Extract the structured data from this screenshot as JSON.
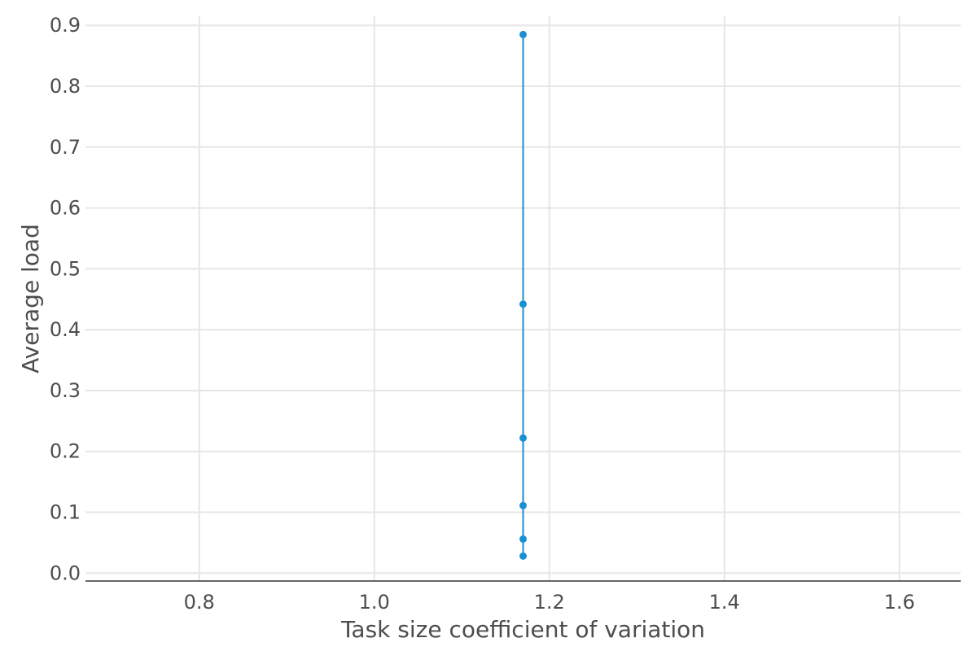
{
  "chart_data": {
    "type": "line",
    "xlabel": "Task size coefficient of variation",
    "ylabel": "Average load",
    "xlim": [
      0.67,
      1.67
    ],
    "ylim": [
      -0.013,
      0.915
    ],
    "x_ticks": [
      "0.8",
      "1.0",
      "1.2",
      "1.4",
      "1.6"
    ],
    "y_ticks": [
      "0.0",
      "0.1",
      "0.2",
      "0.3",
      "0.4",
      "0.5",
      "0.6",
      "0.7",
      "0.8",
      "0.9"
    ],
    "grid": true,
    "series": [
      {
        "color": "#1a8fd1",
        "x": [
          1.17,
          1.17,
          1.17,
          1.17,
          1.17,
          1.17
        ],
        "y": [
          0.028,
          0.056,
          0.111,
          0.222,
          0.442,
          0.885
        ]
      }
    ]
  }
}
